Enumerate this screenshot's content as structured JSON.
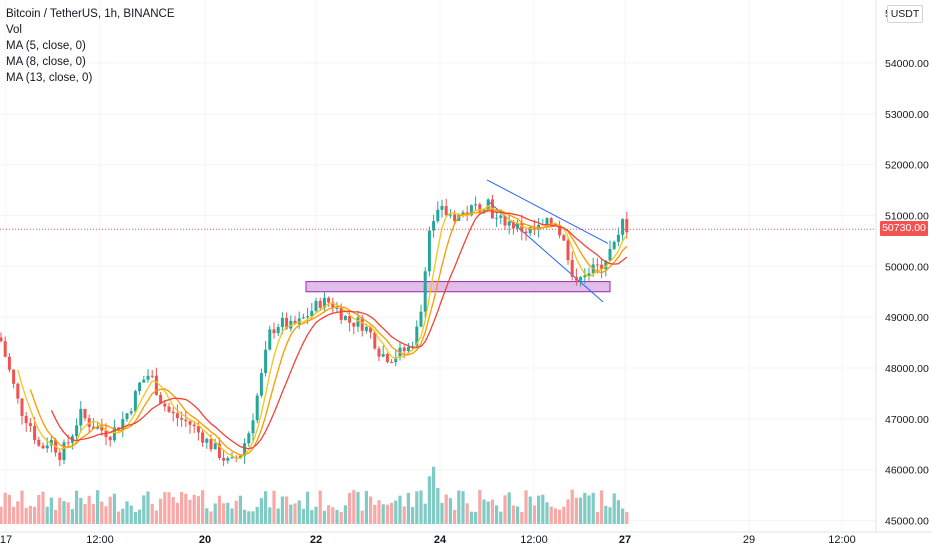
{
  "legend": {
    "symbol": "Bitcoin / TetherUS, 1h, BINANCE",
    "vol": "Vol",
    "ma5": "MA (5, close, 0)",
    "ma8": "MA (8, close, 0)",
    "ma13": "MA (13, close, 0)"
  },
  "currency": "USDT",
  "top_price_fragment": "5",
  "top_price_fragment_end": "0",
  "last_price_label": "50730.00",
  "colors": {
    "up": "#26a69a",
    "down": "#ef5350",
    "vol_up": "#80cbc4",
    "vol_down": "#f7a9a7",
    "ma5": "#f5c518",
    "ma8": "#ff9800",
    "ma13": "#f44336",
    "zone_fill": "#e1bee7",
    "zone_stroke": "#9c27b0",
    "channel": "#2962ff",
    "last_price_line": "#f05350"
  },
  "chart_data": {
    "type": "candlestick",
    "title": "Bitcoin / TetherUS, 1h, BINANCE",
    "ylim": [
      44900,
      55200
    ],
    "y_ticks": [
      "54000.00",
      "53000.00",
      "52000.00",
      "51000.00",
      "50000.00",
      "49000.00",
      "48000.00",
      "47000.00",
      "46000.00",
      "45000.00"
    ],
    "x_ticks": [
      "17",
      "12:00",
      "20",
      "22",
      "24",
      "12:00",
      "27",
      "29",
      "12:00"
    ],
    "last_price": 50730,
    "indicators": [
      "Vol",
      "MA (5, close, 0)",
      "MA (8, close, 0)",
      "MA (13, close, 0)"
    ],
    "close_path": [
      [
        0,
        48600
      ],
      [
        10,
        47900
      ],
      [
        20,
        47200
      ],
      [
        30,
        46900
      ],
      [
        40,
        46400
      ],
      [
        50,
        46600
      ],
      [
        60,
        46300
      ],
      [
        70,
        46600
      ],
      [
        80,
        47100
      ],
      [
        90,
        46900
      ],
      [
        100,
        46800
      ],
      [
        110,
        46700
      ],
      [
        120,
        46900
      ],
      [
        130,
        47200
      ],
      [
        140,
        47700
      ],
      [
        150,
        47900
      ],
      [
        160,
        47400
      ],
      [
        170,
        47100
      ],
      [
        180,
        47000
      ],
      [
        190,
        46900
      ],
      [
        200,
        46700
      ],
      [
        210,
        46500
      ],
      [
        220,
        46300
      ],
      [
        230,
        46100
      ],
      [
        240,
        46300
      ],
      [
        250,
        46800
      ],
      [
        260,
        47700
      ],
      [
        270,
        48700
      ],
      [
        280,
        48900
      ],
      [
        290,
        48800
      ],
      [
        300,
        48900
      ],
      [
        310,
        49100
      ],
      [
        320,
        49300
      ],
      [
        330,
        49300
      ],
      [
        340,
        49100
      ],
      [
        350,
        48900
      ],
      [
        360,
        48900
      ],
      [
        370,
        48700
      ],
      [
        380,
        48300
      ],
      [
        390,
        48200
      ],
      [
        400,
        48300
      ],
      [
        410,
        48400
      ],
      [
        420,
        48900
      ],
      [
        425,
        50000
      ],
      [
        430,
        50800
      ],
      [
        440,
        51100
      ],
      [
        450,
        51000
      ],
      [
        460,
        51000
      ],
      [
        470,
        51100
      ],
      [
        480,
        51200
      ],
      [
        488,
        51300
      ],
      [
        495,
        50900
      ],
      [
        505,
        50900
      ],
      [
        515,
        50800
      ],
      [
        525,
        50700
      ],
      [
        535,
        50700
      ],
      [
        545,
        50800
      ],
      [
        555,
        50900
      ],
      [
        565,
        50400
      ],
      [
        572,
        49700
      ],
      [
        580,
        49900
      ],
      [
        590,
        49900
      ],
      [
        600,
        50000
      ],
      [
        610,
        50300
      ],
      [
        618,
        50500
      ],
      [
        622,
        50900
      ],
      [
        628,
        50730
      ]
    ]
  },
  "annotations": {
    "support_zone": [
      49500,
      49700
    ],
    "channel_upper": [
      [
        487,
        51700
      ],
      [
        608,
        50450
      ]
    ],
    "channel_lower": [
      [
        487,
        51300
      ],
      [
        603,
        49300
      ]
    ]
  }
}
